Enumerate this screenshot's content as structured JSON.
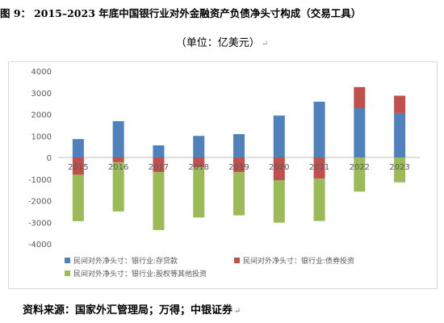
{
  "figure": {
    "label": "图 9：",
    "title": "2015–2023 年底中国银行业对外金融资产负债净头寸构成（交易工具）",
    "subtitle": "（单位：亿美元）",
    "source": "资料来源：国家外汇管理局；万得；中银证券"
  },
  "chart_data": {
    "type": "bar",
    "stacked": true,
    "categories": [
      "2015",
      "2016",
      "2017",
      "2018",
      "2019",
      "2020",
      "2021",
      "2022",
      "2023"
    ],
    "series": [
      {
        "name": "民间对外净头寸：银行业:存贷款",
        "color": "#4f81bd",
        "values": [
          850,
          1680,
          560,
          1000,
          1080,
          1940,
          2580,
          2280,
          2060
        ]
      },
      {
        "name": "民间对外净头寸：银行业:债券投资",
        "color": "#c0504d",
        "values": [
          -800,
          -220,
          -680,
          -460,
          -680,
          -1060,
          -980,
          980,
          800
        ]
      },
      {
        "name": "民间对外净头寸：银行业:股权等其他投资",
        "color": "#9bbb59",
        "values": [
          -2150,
          -2280,
          -2680,
          -2320,
          -2000,
          -1960,
          -1960,
          -1580,
          -1150
        ]
      }
    ],
    "ylim": [
      -4000,
      4000
    ],
    "yticks": [
      4000,
      3000,
      2000,
      1000,
      0,
      -1000,
      -2000,
      -3000,
      -4000
    ],
    "legend_position": "bottom",
    "grid": false
  }
}
